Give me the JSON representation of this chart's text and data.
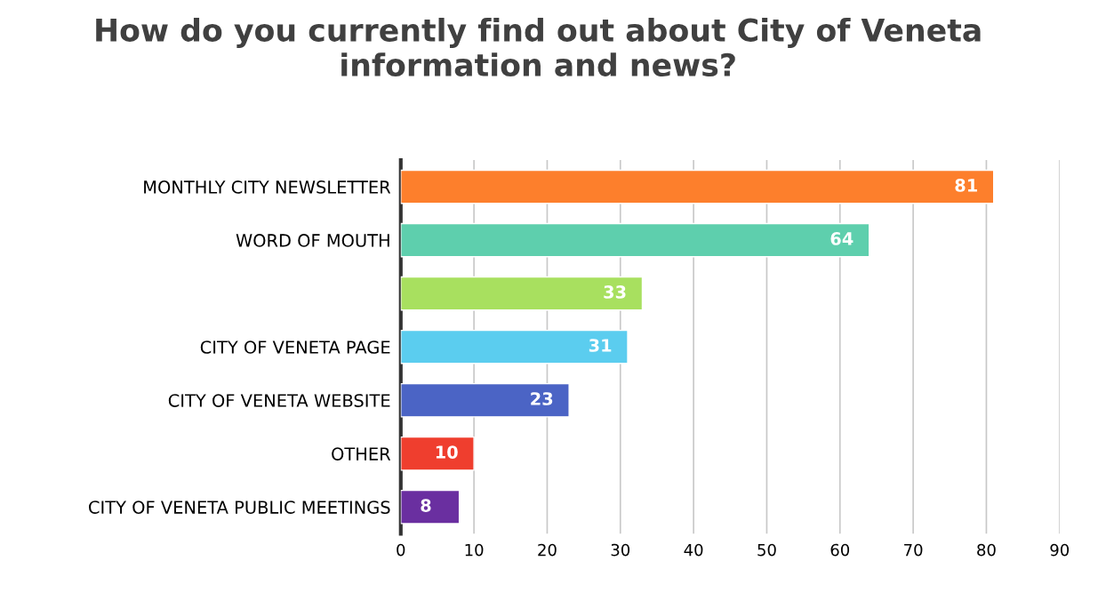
{
  "chart_data": {
    "type": "bar",
    "orientation": "horizontal",
    "title": "How do you currently find out about City of Veneta information and news?",
    "categories": [
      "MONTHLY CITY NEWSLETTER",
      "WORD OF MOUTH",
      null,
      "CITY OF VENETA PAGE",
      "CITY OF VENETA WEBSITE",
      "OTHER",
      "CITY OF VENETA PUBLIC MEETINGS"
    ],
    "values": [
      81,
      64,
      33,
      31,
      23,
      10,
      8
    ],
    "colors": [
      "#fd7f2c",
      "#5ecfad",
      "#a8e05f",
      "#5bcdef",
      "#4b64c5",
      "#ef3e2e",
      "#6a2fa0"
    ],
    "xlim": [
      0,
      90
    ],
    "xticks": [
      0,
      10,
      20,
      30,
      40,
      50,
      60,
      70,
      80,
      90
    ],
    "grid": "x",
    "data_labels": true
  }
}
